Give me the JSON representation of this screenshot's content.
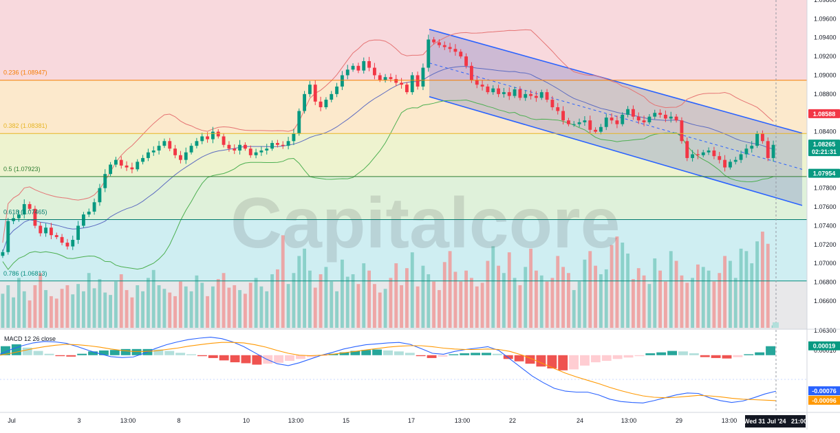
{
  "chart_data": [
    {
      "type": "candlestick",
      "title": "",
      "watermark": "Capitalcore",
      "ylim": [
        1.063,
        1.098
      ],
      "y_ticks": [
        "1.09800",
        "1.09600",
        "1.09400",
        "1.09200",
        "1.09000",
        "1.08800",
        "1.08400",
        "1.07800",
        "1.07600",
        "1.07400",
        "1.07200",
        "1.07000",
        "1.06800",
        "1.06600"
      ],
      "price_tags": [
        {
          "label": "1.08588",
          "value": 1.08588,
          "color": "#f23645"
        },
        {
          "label": "1.08265",
          "value": 1.08265,
          "color": "#089981",
          "sub": "02:21:31"
        },
        {
          "label": "1.07954",
          "value": 1.07954,
          "color": "#089981"
        }
      ],
      "fibonacci_levels": [
        {
          "label": "0.236 (1.08947)",
          "value": 1.08947,
          "color": "#f57c00",
          "fill": "#f8d9dd"
        },
        {
          "label": "0.382 (1.08381)",
          "value": 1.08381,
          "color": "#e6b422",
          "fill": "#fce9cc"
        },
        {
          "label": "0.5 (1.07923)",
          "value": 1.07923,
          "color": "#2e7d32",
          "fill": "#eef3cf"
        },
        {
          "label": "0.618 (1.07465)",
          "value": 1.07465,
          "color": "#00796b",
          "fill": "#dff1da"
        },
        {
          "label": "0.786 (1.06813)",
          "value": 1.06813,
          "color": "#00897b",
          "fill": "#cfeef2"
        }
      ],
      "x_ticks": [
        "Jul",
        "3",
        "13:00",
        "8",
        "10",
        "13:00",
        "15",
        "17",
        "13:00",
        "22",
        "24",
        "13:00",
        "29",
        "13:00"
      ],
      "last_time_label": "Wed 31 Jul '24   21:00",
      "volume_last_label": "717",
      "closes": [
        1.0712,
        1.0745,
        1.0748,
        1.0752,
        1.0763,
        1.0758,
        1.074,
        1.0732,
        1.0738,
        1.073,
        1.0728,
        1.0722,
        1.0718,
        1.0725,
        1.074,
        1.0752,
        1.0755,
        1.0765,
        1.078,
        1.0795,
        1.0805,
        1.081,
        1.0804,
        1.0802,
        1.08,
        1.0808,
        1.0812,
        1.0818,
        1.082,
        1.0825,
        1.083,
        1.0822,
        1.0815,
        1.081,
        1.0818,
        1.0825,
        1.083,
        1.0835,
        1.0832,
        1.084,
        1.0835,
        1.0826,
        1.0822,
        1.082,
        1.0826,
        1.0822,
        1.0815,
        1.0818,
        1.082,
        1.0822,
        1.0828,
        1.0826,
        1.0825,
        1.083,
        1.0838,
        1.0862,
        1.088,
        1.089,
        1.0872,
        1.0866,
        1.0874,
        1.088,
        1.0888,
        1.09,
        1.0906,
        1.091,
        1.0905,
        1.0915,
        1.0908,
        1.09,
        1.0895,
        1.0898,
        1.0896,
        1.0892,
        1.089,
        1.0882,
        1.09,
        1.0888,
        1.0908,
        1.0938,
        1.0935,
        1.0932,
        1.093,
        1.0928,
        1.0925,
        1.092,
        1.091,
        1.0895,
        1.089,
        1.0888,
        1.0882,
        1.0886,
        1.088,
        1.0882,
        1.0878,
        1.0885,
        1.0876,
        1.088,
        1.0878,
        1.0876,
        1.0882,
        1.0874,
        1.0866,
        1.0862,
        1.0852,
        1.0848,
        1.0848,
        1.085,
        1.0852,
        1.0842,
        1.084,
        1.0845,
        1.0855,
        1.0852,
        1.0848,
        1.0858,
        1.0864,
        1.0856,
        1.0852,
        1.085,
        1.0856,
        1.086,
        1.0858,
        1.0854,
        1.0856,
        1.0852,
        1.083,
        1.0812,
        1.0816,
        1.0815,
        1.0818,
        1.082,
        1.0814,
        1.081,
        1.0802,
        1.0808,
        1.081,
        1.0816,
        1.0822,
        1.0825,
        1.0838,
        1.083,
        1.0812,
        1.0826
      ],
      "volumes": [
        560,
        700,
        500,
        820,
        600,
        450,
        700,
        900,
        620,
        520,
        480,
        640,
        700,
        550,
        720,
        600,
        900,
        650,
        800,
        580,
        540,
        760,
        880,
        620,
        500,
        700,
        600,
        820,
        950,
        700,
        640,
        580,
        520,
        760,
        680,
        600,
        860,
        740,
        520,
        680,
        800,
        900,
        660,
        700,
        620,
        560,
        740,
        820,
        680,
        600,
        880,
        960,
        1520,
        720,
        900,
        1180,
        1300,
        940,
        660,
        880,
        1000,
        760,
        600,
        1120,
        840,
        880,
        720,
        1060,
        940,
        720,
        580,
        640,
        820,
        1060,
        700,
        980,
        1240,
        680,
        1020,
        880,
        760,
        620,
        1080,
        1260,
        920,
        760,
        940,
        820,
        680,
        740,
        1100,
        1340,
        1020,
        900,
        1240,
        820,
        700,
        1000,
        1300,
        940,
        860,
        760,
        820,
        1180,
        1000,
        900,
        620,
        760,
        1120,
        1260,
        1020,
        880,
        960,
        1360,
        1500,
        1400,
        1220,
        800,
        980,
        860,
        720,
        1140,
        940,
        760,
        1260,
        1100,
        860,
        740,
        820,
        1040,
        1000,
        940,
        760,
        900,
        1180,
        1100,
        820,
        1300,
        1260,
        1060,
        1420,
        1580,
        1380,
        40
      ]
    },
    {
      "type": "line",
      "title": "MACD 12 26 close",
      "ylim": [
        -0.00118,
        0.00052
      ],
      "y_ticks": [
        "0.00010"
      ],
      "price_tags": [
        {
          "label": "0.00019",
          "value": 0.00019,
          "color": "#089981"
        },
        {
          "label": "-0.00076",
          "value": -0.00076,
          "color": "#2962ff"
        },
        {
          "label": "-0.00096",
          "value": -0.00096,
          "color": "#ff9800"
        }
      ],
      "series": [
        {
          "name": "",
          "color": "#2962ff",
          "values": [
            2e-05,
            0.00012,
            0.0002,
            0.00026,
            0.00029,
            0.00028,
            0.00025,
            0.00018,
            0.0001,
            3e-05,
            -3e-05,
            -5e-05,
            -4e-05,
            4e-05,
            0.00014,
            0.00022,
            0.00028,
            0.00033,
            0.00036,
            0.00038,
            0.00035,
            0.00028,
            0.00018,
            5e-05,
            -8e-05,
            -0.00018,
            -0.00022,
            -0.00016,
            -8e-05,
            0.0,
            6e-05,
            0.00013,
            0.00018,
            0.00022,
            0.00024,
            0.00026,
            0.00027,
            0.00023,
            0.00014,
            4e-05,
            2e-05,
            8e-05,
            0.00012,
            0.00015,
            0.00018,
            0.0001,
            -8e-05,
            -0.00026,
            -0.00044,
            -0.00058,
            -0.0007,
            -0.00076,
            -0.00078,
            -0.00078,
            -0.00084,
            -0.00093,
            -0.00098,
            -0.001,
            -0.00101,
            -0.00096,
            -0.0009,
            -0.00084,
            -0.0008,
            -0.00081,
            -0.0009,
            -0.00096,
            -0.001,
            -0.00097,
            -0.0009,
            -0.00082,
            -0.00076
          ]
        },
        {
          "name": "",
          "color": "#ff9800",
          "values": [
            0.0,
            4e-05,
            9e-05,
            0.00014,
            0.00018,
            0.00021,
            0.00023,
            0.00022,
            0.0002,
            0.00017,
            0.00013,
            0.0001,
            8e-05,
            8e-05,
            9e-05,
            0.00012,
            0.00015,
            0.00019,
            0.00022,
            0.00025,
            0.00027,
            0.00027,
            0.00026,
            0.00022,
            0.00017,
            0.0001,
            4e-05,
            0.0,
            -1e-05,
            0.0,
            2e-05,
            5e-05,
            8e-05,
            0.00011,
            0.00014,
            0.00017,
            0.00019,
            0.0002,
            0.0002,
            0.00018,
            0.00015,
            0.00013,
            0.00012,
            0.00012,
            0.00013,
            0.00012,
            8e-05,
            1e-05,
            -8e-05,
            -0.00018,
            -0.00028,
            -0.00038,
            -0.00046,
            -0.00053,
            -0.0006,
            -0.00068,
            -0.00075,
            -0.00081,
            -0.00086,
            -0.00089,
            -0.0009,
            -0.00089,
            -0.00087,
            -0.00085,
            -0.00086,
            -0.00088,
            -0.00091,
            -0.00093,
            -0.00094,
            -0.00095,
            -0.00096
          ]
        }
      ],
      "histogram": [
        0.00019,
        0.00023,
        0.00016,
        9e-05,
        3e-05,
        -2e-05,
        -3e-05,
        3e-05,
        8e-05,
        0.0001,
        0.00011,
        0.00013,
        0.00013,
        0.00013,
        0.00012,
        9e-05,
        5e-05,
        2e-05,
        -2e-05,
        -6e-05,
        -0.00011,
        -0.00015,
        -0.00017,
        -0.0002,
        -0.00018,
        -0.00016,
        -0.00012,
        -8e-05,
        -4e-05,
        -1e-05,
        3e-05,
        6e-05,
        9e-05,
        0.00011,
        0.00012,
        0.0001,
        8e-05,
        5e-05,
        -2e-05,
        -6e-05,
        -3e-05,
        2e-05,
        4e-05,
        5e-05,
        5e-05,
        3e-05,
        -8e-05,
        -0.00013,
        -0.00018,
        -0.00024,
        -0.00028,
        -0.00032,
        -0.0003,
        -0.00022,
        -0.00015,
        -0.00012,
        -8e-05,
        -5e-05,
        -2e-05,
        4e-05,
        6e-05,
        9e-05,
        8e-05,
        4e-05,
        -4e-05,
        -6e-05,
        -7e-05,
        -4e-05,
        2e-05,
        6e-05,
        0.00019
      ]
    }
  ]
}
